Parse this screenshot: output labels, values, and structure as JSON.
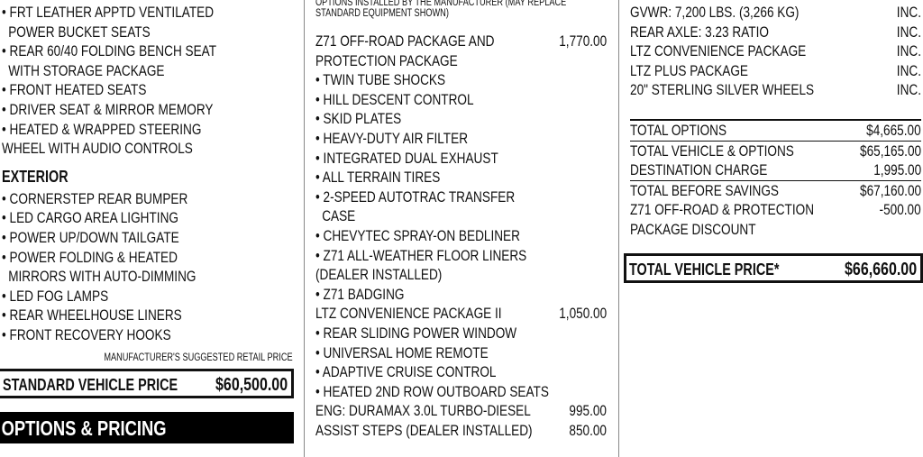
{
  "left": {
    "interior_items": [
      {
        "lines": [
          "FRT LEATHER APPTD VENTILATED",
          "POWER BUCKET SEATS"
        ]
      },
      {
        "lines": [
          "REAR 60/40 FOLDING BENCH SEAT",
          "WITH STORAGE PACKAGE"
        ]
      },
      {
        "lines": [
          "FRONT HEATED SEATS"
        ]
      },
      {
        "lines": [
          "DRIVER SEAT & MIRROR MEMORY"
        ]
      },
      {
        "lines": [
          "HEATED & WRAPPED  STEERING",
          "WHEEL WITH AUDIO CONTROLS"
        ],
        "flush": true
      }
    ],
    "exterior_title": "EXTERIOR",
    "exterior_items": [
      {
        "lines": [
          "CORNERSTEP REAR BUMPER"
        ]
      },
      {
        "lines": [
          "LED CARGO AREA LIGHTING"
        ]
      },
      {
        "lines": [
          "POWER UP/DOWN TAILGATE"
        ]
      },
      {
        "lines": [
          "POWER FOLDING & HEATED",
          "MIRRORS WITH AUTO-DIMMING"
        ]
      },
      {
        "lines": [
          "LED FOG LAMPS"
        ]
      },
      {
        "lines": [
          "REAR WHEELHOUSE LINERS"
        ]
      },
      {
        "lines": [
          "FRONT RECOVERY HOOKS"
        ]
      }
    ],
    "msrp_label": "MANUFACTURER'S SUGGESTED RETAIL PRICE",
    "standard_price_label": "STANDARD VEHICLE PRICE",
    "standard_price_value": "$60,500.00",
    "options_heading": "OPTIONS & PRICING"
  },
  "middle": {
    "header": "OPTIONS INSTALLED BY THE MANUFACTURER (MAY REPLACE STANDARD EQUIPMENT SHOWN)",
    "header_lines": [
      "OPTIONS INSTALLED BY THE MANUFACTURER (MAY REPLACE",
      "STANDARD EQUIPMENT SHOWN)"
    ],
    "rows": [
      {
        "text": "Z71 OFF-ROAD PACKAGE AND",
        "price": "1,770.00"
      },
      {
        "text": "PROTECTION PACKAGE"
      },
      {
        "text": "• TWIN TUBE SHOCKS"
      },
      {
        "text": "• HILL DESCENT CONTROL"
      },
      {
        "text": "• SKID PLATES"
      },
      {
        "text": "• HEAVY-DUTY AIR FILTER"
      },
      {
        "text": "• INTEGRATED DUAL EXHAUST"
      },
      {
        "text": "• ALL TERRAIN TIRES"
      },
      {
        "text": "• 2-SPEED AUTOTRAC TRANSFER"
      },
      {
        "text": "CASE",
        "indent": true
      },
      {
        "text": "• CHEVYTEC SPRAY-ON BEDLINER"
      },
      {
        "text": "• Z71 ALL-WEATHER FLOOR LINERS"
      },
      {
        "text": "(DEALER INSTALLED)"
      },
      {
        "text": "• Z71 BADGING"
      },
      {
        "text": "LTZ CONVENIENCE PACKAGE II",
        "price": "1,050.00"
      },
      {
        "text": "• REAR SLIDING POWER WINDOW"
      },
      {
        "text": "• UNIVERSAL HOME REMOTE"
      },
      {
        "text": "• ADAPTIVE CRUISE CONTROL"
      },
      {
        "text": "• HEATED 2ND ROW OUTBOARD SEATS"
      },
      {
        "text": "ENG:  DURAMAX 3.0L TURBO-DIESEL",
        "price": "995.00"
      },
      {
        "text": "ASSIST STEPS (DEALER INSTALLED)",
        "price": "850.00"
      }
    ]
  },
  "right": {
    "specs": [
      {
        "text": "GVWR: 7,200 LBS. (3,266 KG)",
        "value": "INC."
      },
      {
        "text": "REAR AXLE: 3.23 RATIO",
        "value": "INC."
      },
      {
        "text": "LTZ CONVENIENCE PACKAGE",
        "value": "INC."
      },
      {
        "text": "LTZ PLUS PACKAGE",
        "value": "INC."
      },
      {
        "text": "20\" STERLING SILVER WHEELS",
        "value": "INC."
      }
    ],
    "totals": [
      {
        "text": "TOTAL OPTIONS",
        "value": "$4,665.00"
      },
      {
        "text": "TOTAL VEHICLE & OPTIONS",
        "value": "$65,165.00"
      },
      {
        "text": "DESTINATION CHARGE",
        "value": "1,995.00"
      },
      {
        "text": "TOTAL BEFORE SAVINGS",
        "value": "$67,160.00"
      },
      {
        "text": "Z71 OFF-ROAD & PROTECTION",
        "value": "-500.00"
      },
      {
        "text": "PACKAGE DISCOUNT",
        "value": ""
      }
    ],
    "total_price_label": "TOTAL VEHICLE PRICE*",
    "total_price_value": "$66,660.00"
  }
}
